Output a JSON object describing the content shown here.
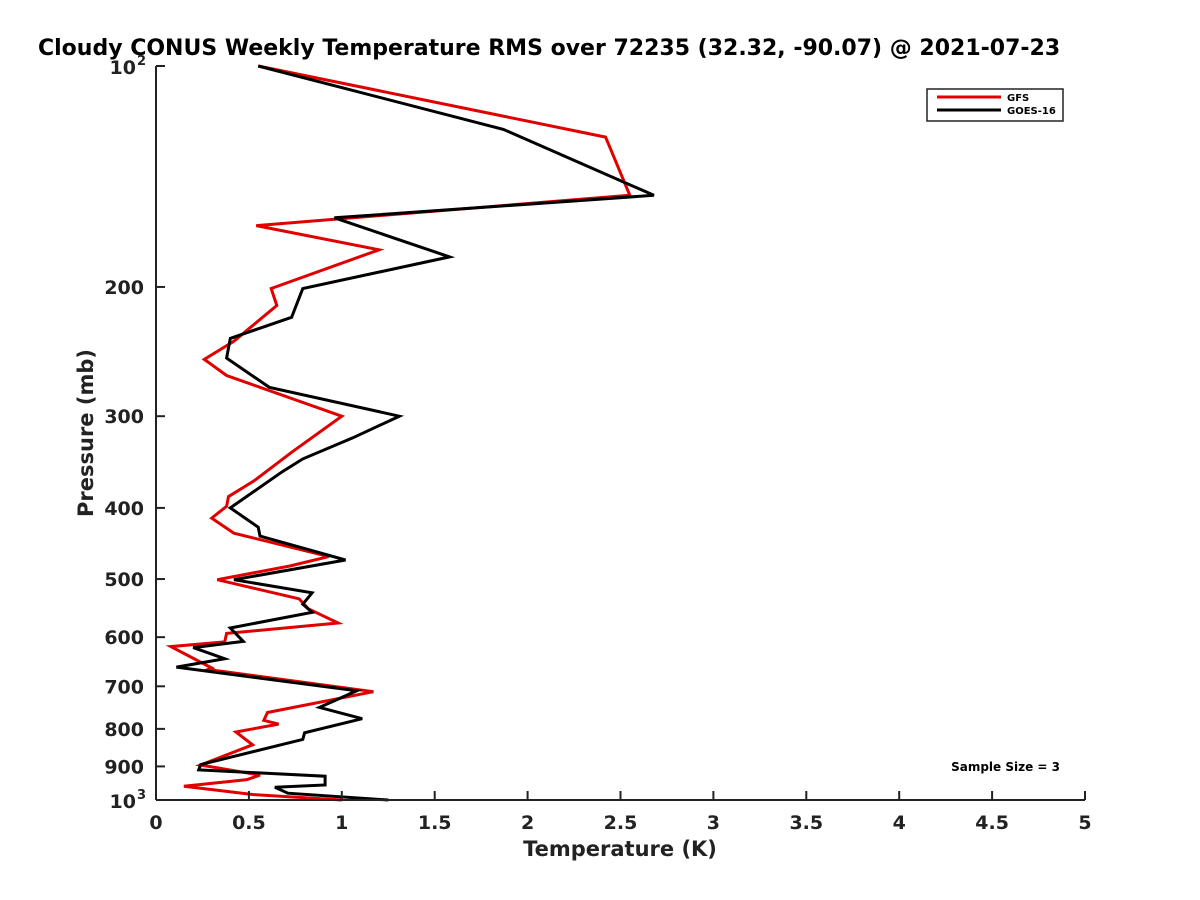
{
  "chart_data": {
    "type": "line",
    "title": "Cloudy CONUS Weekly Temperature RMS over 72235 (32.32, -90.07) @ 2021-07-23",
    "xlabel": "Temperature (K)",
    "ylabel": "Pressure (mb)",
    "xlim": [
      0,
      5
    ],
    "ylim": [
      100,
      1000
    ],
    "y_scale": "log",
    "y_reversed": true,
    "grid": false,
    "legend_position": "top-right",
    "x_ticks": [
      {
        "value": 0,
        "label": "0"
      },
      {
        "value": 0.5,
        "label": "0.5"
      },
      {
        "value": 1,
        "label": "1"
      },
      {
        "value": 1.5,
        "label": "1.5"
      },
      {
        "value": 2,
        "label": "2"
      },
      {
        "value": 2.5,
        "label": "2.5"
      },
      {
        "value": 3,
        "label": "3"
      },
      {
        "value": 3.5,
        "label": "3.5"
      },
      {
        "value": 4,
        "label": "4"
      },
      {
        "value": 4.5,
        "label": "4.5"
      },
      {
        "value": 5,
        "label": "5"
      }
    ],
    "y_ticks": [
      {
        "value": 100,
        "label": "10",
        "sup": "2"
      },
      {
        "value": 200,
        "label": "200"
      },
      {
        "value": 300,
        "label": "300"
      },
      {
        "value": 400,
        "label": "400"
      },
      {
        "value": 500,
        "label": "500"
      },
      {
        "value": 600,
        "label": "600"
      },
      {
        "value": 700,
        "label": "700"
      },
      {
        "value": 800,
        "label": "800"
      },
      {
        "value": 900,
        "label": "900"
      },
      {
        "value": 1000,
        "label": "10",
        "sup": "3"
      }
    ],
    "annotation": "Sample Size = 3",
    "series": [
      {
        "name": "GFS",
        "color": "#e00000",
        "points": [
          [
            0.55,
            100
          ],
          [
            2.42,
            125
          ],
          [
            2.55,
            150
          ],
          [
            0.54,
            165
          ],
          [
            1.2,
            178
          ],
          [
            0.62,
            201
          ],
          [
            0.65,
            212
          ],
          [
            0.42,
            237
          ],
          [
            0.26,
            251
          ],
          [
            0.38,
            264
          ],
          [
            1.0,
            300
          ],
          [
            0.73,
            336
          ],
          [
            0.53,
            367
          ],
          [
            0.39,
            386
          ],
          [
            0.38,
            398
          ],
          [
            0.3,
            413
          ],
          [
            0.42,
            433
          ],
          [
            0.93,
            466
          ],
          [
            0.72,
            480
          ],
          [
            0.33,
            501
          ],
          [
            0.77,
            532
          ],
          [
            0.82,
            549
          ],
          [
            0.98,
            574
          ],
          [
            0.38,
            593
          ],
          [
            0.37,
            609
          ],
          [
            0.08,
            618
          ],
          [
            0.3,
            661
          ],
          [
            0.28,
            664
          ],
          [
            1.17,
            712
          ],
          [
            0.6,
            760
          ],
          [
            0.58,
            779
          ],
          [
            0.66,
            788
          ],
          [
            0.43,
            808
          ],
          [
            0.52,
            841
          ],
          [
            0.24,
            896
          ],
          [
            0.56,
            925
          ],
          [
            0.49,
            938
          ],
          [
            0.15,
            958
          ],
          [
            0.52,
            983
          ],
          [
            1.0,
            1000
          ]
        ]
      },
      {
        "name": "GOES-16",
        "color": "#000000",
        "points": [
          [
            0.55,
            100
          ],
          [
            1.87,
            122
          ],
          [
            2.68,
            150
          ],
          [
            0.96,
            161
          ],
          [
            1.58,
            182
          ],
          [
            0.79,
            201
          ],
          [
            0.73,
            220
          ],
          [
            0.4,
            235
          ],
          [
            0.38,
            250
          ],
          [
            0.61,
            274
          ],
          [
            1.31,
            300
          ],
          [
            1.06,
            321
          ],
          [
            0.79,
            343
          ],
          [
            0.68,
            357
          ],
          [
            0.4,
            400
          ],
          [
            0.55,
            425
          ],
          [
            0.56,
            437
          ],
          [
            1.02,
            471
          ],
          [
            0.42,
            501
          ],
          [
            0.84,
            522
          ],
          [
            0.79,
            541
          ],
          [
            0.84,
            555
          ],
          [
            0.4,
            583
          ],
          [
            0.47,
            608
          ],
          [
            0.2,
            620
          ],
          [
            0.37,
            642
          ],
          [
            0.11,
            659
          ],
          [
            1.08,
            710
          ],
          [
            0.88,
            748
          ],
          [
            1.11,
            775
          ],
          [
            0.8,
            810
          ],
          [
            0.79,
            827
          ],
          [
            0.24,
            895
          ],
          [
            0.23,
            910
          ],
          [
            0.91,
            928
          ],
          [
            0.91,
            954
          ],
          [
            0.64,
            961
          ],
          [
            0.71,
            979
          ],
          [
            1.25,
            1000
          ]
        ]
      }
    ]
  }
}
